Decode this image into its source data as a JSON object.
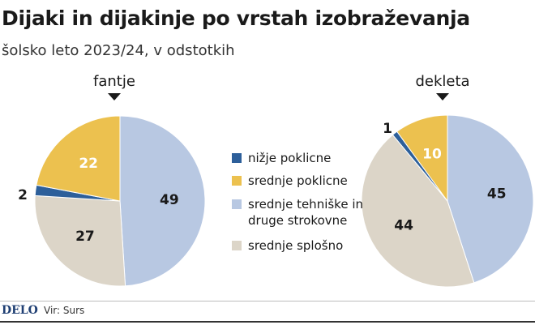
{
  "title": "Dijaki in dijakinje po vrstah izobraževanja",
  "subtitle": "šolsko leto 2023/24, v odstotkih",
  "footer": {
    "brand": "DELO",
    "source": "Vir: Surs"
  },
  "chart_data": {
    "type": "pie",
    "colors": {
      "nizje_poklicne": "#2d5f9a",
      "srednje_poklicne": "#ecc14f",
      "srednje_tehniske": "#b8c8e2",
      "srednje_splosno": "#dcd5c8"
    },
    "legend": [
      {
        "key": "nizje_poklicne",
        "lines": [
          "nižje poklicne"
        ]
      },
      {
        "key": "srednje_poklicne",
        "lines": [
          "srednje poklicne"
        ]
      },
      {
        "key": "srednje_tehniske",
        "lines": [
          "srednje tehniške in",
          "druge strokovne"
        ]
      },
      {
        "key": "srednje_splosno",
        "lines": [
          "srednje splošno"
        ]
      }
    ],
    "pies": [
      {
        "title": "fantje",
        "slices": [
          {
            "key": "srednje_tehniske",
            "value": 49
          },
          {
            "key": "srednje_splosno",
            "value": 27
          },
          {
            "key": "nizje_poklicne",
            "value": 2
          },
          {
            "key": "srednje_poklicne",
            "value": 22
          }
        ]
      },
      {
        "title": "dekleta",
        "slices": [
          {
            "key": "srednje_tehniske",
            "value": 45
          },
          {
            "key": "srednje_splosno",
            "value": 44
          },
          {
            "key": "nizje_poklicne",
            "value": 1
          },
          {
            "key": "srednje_poklicne",
            "value": 10
          }
        ]
      }
    ]
  }
}
